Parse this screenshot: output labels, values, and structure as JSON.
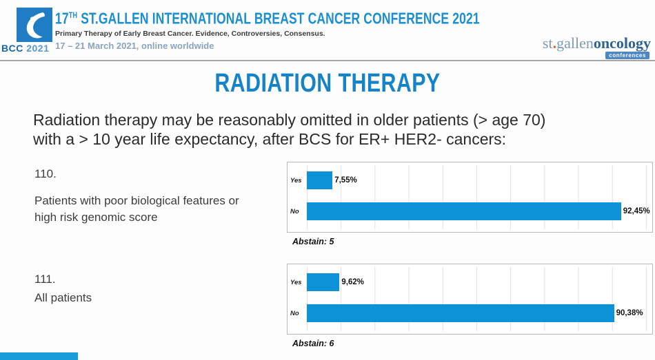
{
  "header": {
    "logo": {
      "bcc": "BCC",
      "year": "2021"
    },
    "title_num": "17",
    "title_sup": "TH",
    "title_main": " ST.GALLEN INTERNATIONAL BREAST CANCER CONFERENCE 2021",
    "subtitle": "Primary Therapy of Early Breast Cancer. Evidence, Controversies, Consensus.",
    "dates": "17 – 21 March 2021, online worldwide",
    "brand": {
      "prefix": "st",
      "dot": ".",
      "middle": "gallen",
      "suffix": "oncology",
      "badge": "conferences"
    }
  },
  "slide": {
    "title": "RADIATION THERAPY",
    "question": {
      "line1": "Radiation therapy may be reasonably omitted in older patients (> age 70)",
      "line2": "with a > 10 year life expectancy, after BCS for ER+ HER2- cancers:"
    },
    "items": [
      {
        "number": "110.",
        "line1": "Patients with poor biological features or",
        "line2": "high risk genomic score"
      },
      {
        "number": "111.",
        "line1": "All patients",
        "line2": ""
      }
    ]
  },
  "chart_data": [
    {
      "type": "bar",
      "orientation": "horizontal",
      "question_number": "110",
      "categories": [
        "Yes",
        "No"
      ],
      "values": [
        7.55,
        92.45
      ],
      "value_labels": [
        "7,55%",
        "92,45%"
      ],
      "xlim": [
        0,
        100
      ],
      "grid": true,
      "grid_interval_pct": 10,
      "legend": "none",
      "abstain_note": "Abstain: 5",
      "bar_color": "#0d92d8"
    },
    {
      "type": "bar",
      "orientation": "horizontal",
      "question_number": "111",
      "categories": [
        "Yes",
        "No"
      ],
      "values": [
        9.62,
        90.38
      ],
      "value_labels": [
        "9,62%",
        "90,38%"
      ],
      "xlim": [
        0,
        100
      ],
      "grid": true,
      "grid_interval_pct": 10,
      "legend": "none",
      "abstain_note": "Abstain: 6",
      "bar_color": "#0d92d8"
    }
  ],
  "colors": {
    "accent_blue": "#1583c8",
    "bar_blue": "#0d92d8",
    "header_title_blue": "#1b8fd0",
    "dates_steel_blue": "#8ba3bd",
    "brand_gray_blue": "#7e9ab3",
    "brand_dark_blue": "#2f6391",
    "brand_dot_orange": "#cf6a31",
    "logo_blue": "#1e7dc4"
  }
}
